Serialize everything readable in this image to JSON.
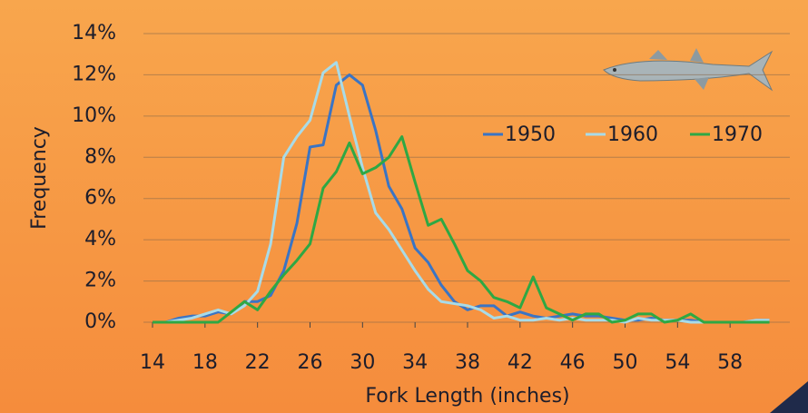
{
  "chart_data": {
    "type": "line",
    "xlabel": "Fork Length (inches)",
    "ylabel": "Frequency",
    "x": [
      14,
      15,
      16,
      17,
      18,
      19,
      20,
      21,
      22,
      23,
      24,
      25,
      26,
      27,
      28,
      29,
      30,
      31,
      32,
      33,
      34,
      35,
      36,
      37,
      38,
      39,
      40,
      41,
      42,
      43,
      44,
      45,
      46,
      47,
      48,
      49,
      50,
      51,
      52,
      53,
      54,
      55,
      56,
      57,
      58,
      59,
      60,
      61
    ],
    "series": [
      {
        "name": "1950",
        "color": "#3a74c4",
        "values": [
          0,
          0,
          0.2,
          0.3,
          0.3,
          0.5,
          0.4,
          1.0,
          1.0,
          1.3,
          2.5,
          4.8,
          8.5,
          8.6,
          11.5,
          12,
          11.5,
          9.3,
          6.6,
          5.5,
          3.6,
          2.9,
          1.8,
          1.0,
          0.6,
          0.8,
          0.8,
          0.3,
          0.5,
          0.3,
          0.2,
          0.3,
          0.4,
          0.3,
          0.3,
          0.2,
          0.1,
          0.1,
          0.2,
          0.1,
          0.1,
          0.1,
          0,
          0,
          0,
          0,
          0.1,
          0.1
        ]
      },
      {
        "name": "1960",
        "color": "#a8dbe8",
        "values": [
          0,
          0,
          0.1,
          0.2,
          0.4,
          0.6,
          0.4,
          0.8,
          1.5,
          3.8,
          8.0,
          9.0,
          9.8,
          12.1,
          12.6,
          10.0,
          7.5,
          5.3,
          4.5,
          3.5,
          2.5,
          1.6,
          1.0,
          0.9,
          0.8,
          0.6,
          0.2,
          0.3,
          0.1,
          0.1,
          0.2,
          0.1,
          0.2,
          0.1,
          0.1,
          0.1,
          0,
          0.2,
          0.1,
          0.1,
          0.1,
          0,
          0,
          0,
          0,
          0,
          0.1,
          0.1
        ]
      },
      {
        "name": "1970",
        "color": "#2ea844",
        "values": [
          0,
          0,
          0,
          0,
          0,
          0,
          0.5,
          1.0,
          0.6,
          1.5,
          2.3,
          3.0,
          3.8,
          6.5,
          7.3,
          8.7,
          7.2,
          7.5,
          8.0,
          9.0,
          6.8,
          4.7,
          5.0,
          3.8,
          2.5,
          2.0,
          1.2,
          1.0,
          0.7,
          2.2,
          0.7,
          0.4,
          0.1,
          0.4,
          0.4,
          0,
          0.1,
          0.4,
          0.4,
          0,
          0.1,
          0.4,
          0,
          0,
          0,
          0,
          0,
          0
        ]
      }
    ],
    "xlim": [
      14,
      62
    ],
    "xticks": [
      14,
      18,
      22,
      26,
      30,
      34,
      38,
      42,
      46,
      50,
      54,
      58
    ],
    "ylim": [
      0,
      14
    ],
    "yticks": [
      {
        "value": 0,
        "label": "0%"
      },
      {
        "value": 2,
        "label": "2%"
      },
      {
        "value": 4,
        "label": "4%"
      },
      {
        "value": 6,
        "label": "6%"
      },
      {
        "value": 8,
        "label": "8%"
      },
      {
        "value": 10,
        "label": "10%"
      },
      {
        "value": 12,
        "label": "12%"
      },
      {
        "value": 14,
        "label": "14%"
      }
    ],
    "grid": true
  }
}
